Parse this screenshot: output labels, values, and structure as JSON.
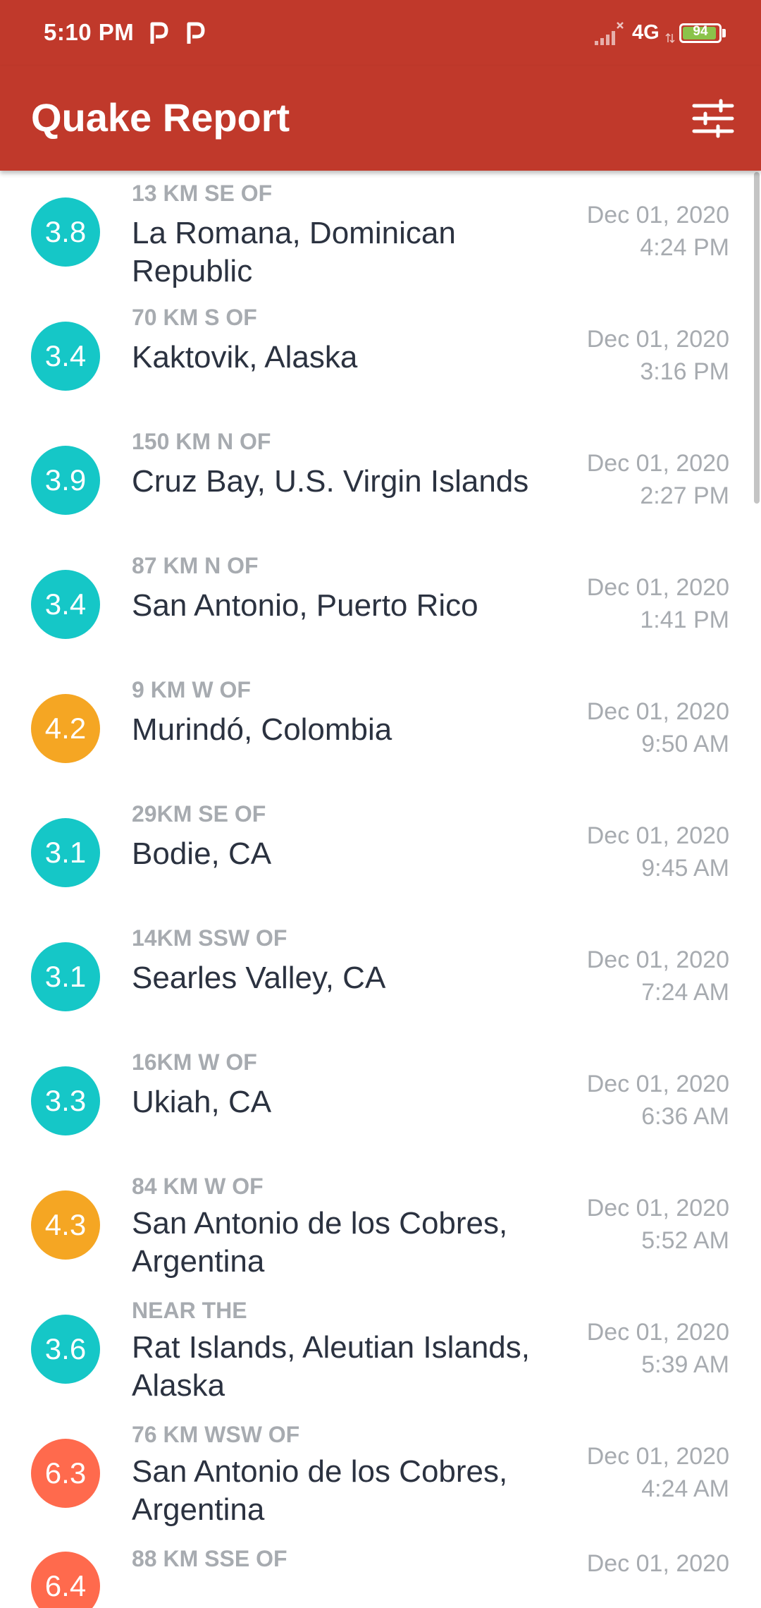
{
  "status_bar": {
    "time": "5:10 PM",
    "notification_icons": [
      "parking-p-icon",
      "parking-p-icon"
    ],
    "network": "4G",
    "battery_level": "94",
    "battery_percent": 94
  },
  "app_bar": {
    "title": "Quake Report",
    "filter_icon": "tune-sliders-icon"
  },
  "colors": {
    "app_bar": "#c0392b",
    "mag_low": "#15c7c7",
    "mag_mid": "#f5a623",
    "mag_high": "#ff6a4d",
    "secondary_text": "#a7abb0",
    "primary_text": "#2b3240"
  },
  "earthquakes": [
    {
      "magnitude": "3.8",
      "color": "#15c7c7",
      "offset": "13 KM SE OF",
      "location": "La Romana, Dominican Republic",
      "date": "Dec 01, 2020",
      "time": "4:24 PM"
    },
    {
      "magnitude": "3.4",
      "color": "#15c7c7",
      "offset": "70 KM S OF",
      "location": "Kaktovik, Alaska",
      "date": "Dec 01, 2020",
      "time": "3:16 PM"
    },
    {
      "magnitude": "3.9",
      "color": "#15c7c7",
      "offset": "150 KM N OF",
      "location": "Cruz Bay, U.S. Virgin Islands",
      "date": "Dec 01, 2020",
      "time": "2:27 PM"
    },
    {
      "magnitude": "3.4",
      "color": "#15c7c7",
      "offset": "87 KM N OF",
      "location": "San Antonio, Puerto Rico",
      "date": "Dec 01, 2020",
      "time": "1:41 PM"
    },
    {
      "magnitude": "4.2",
      "color": "#f5a623",
      "offset": "9 KM W OF",
      "location": "Murindó, Colombia",
      "date": "Dec 01, 2020",
      "time": "9:50 AM"
    },
    {
      "magnitude": "3.1",
      "color": "#15c7c7",
      "offset": "29KM SE OF",
      "location": "Bodie, CA",
      "date": "Dec 01, 2020",
      "time": "9:45 AM"
    },
    {
      "magnitude": "3.1",
      "color": "#15c7c7",
      "offset": "14KM SSW OF",
      "location": "Searles Valley, CA",
      "date": "Dec 01, 2020",
      "time": "7:24 AM"
    },
    {
      "magnitude": "3.3",
      "color": "#15c7c7",
      "offset": "16KM W OF",
      "location": "Ukiah, CA",
      "date": "Dec 01, 2020",
      "time": "6:36 AM"
    },
    {
      "magnitude": "4.3",
      "color": "#f5a623",
      "offset": "84 KM W OF",
      "location": "San Antonio de los Cobres, Argentina",
      "date": "Dec 01, 2020",
      "time": "5:52 AM"
    },
    {
      "magnitude": "3.6",
      "color": "#15c7c7",
      "offset": "NEAR THE",
      "location": "Rat Islands, Aleutian Islands, Alaska",
      "date": "Dec 01, 2020",
      "time": "5:39 AM"
    },
    {
      "magnitude": "6.3",
      "color": "#ff6a4d",
      "offset": "76 KM WSW OF",
      "location": "San Antonio de los Cobres, Argentina",
      "date": "Dec 01, 2020",
      "time": "4:24 AM"
    },
    {
      "magnitude": "6.4",
      "color": "#ff6a4d",
      "offset": "88 KM SSE OF",
      "location": "",
      "date": "Dec 01, 2020",
      "time": ""
    }
  ]
}
